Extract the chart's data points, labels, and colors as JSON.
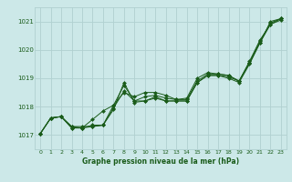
{
  "title": "Graphe pression niveau de la mer (hPa)",
  "bg_color": "#cce8e8",
  "grid_color": "#b0d0d0",
  "line_color": "#1a5c1a",
  "marker_color": "#1a5c1a",
  "xlim": [
    -0.5,
    23.5
  ],
  "ylim": [
    1016.5,
    1021.5
  ],
  "yticks": [
    1017,
    1018,
    1019,
    1020,
    1021
  ],
  "xticks": [
    0,
    1,
    2,
    3,
    4,
    5,
    6,
    7,
    8,
    9,
    10,
    11,
    12,
    13,
    14,
    15,
    16,
    17,
    18,
    19,
    20,
    21,
    22,
    23
  ],
  "series": [
    [
      1017.05,
      1017.6,
      1017.65,
      1017.25,
      1017.25,
      1017.35,
      1017.35,
      1017.9,
      1018.85,
      1018.15,
      1018.2,
      1018.35,
      1018.2,
      1018.2,
      1018.2,
      1018.85,
      1019.1,
      1019.1,
      1019.05,
      1018.9,
      1019.55,
      1020.3,
      1020.95,
      1021.1
    ],
    [
      1017.05,
      1017.6,
      1017.65,
      1017.25,
      1017.25,
      1017.55,
      1017.85,
      1018.05,
      1018.5,
      1018.35,
      1018.5,
      1018.5,
      1018.4,
      1018.25,
      1018.3,
      1019.0,
      1019.2,
      1019.15,
      1019.1,
      1018.9,
      1019.6,
      1020.35,
      1020.9,
      1021.1
    ],
    [
      1017.05,
      1017.6,
      1017.65,
      1017.3,
      1017.25,
      1017.3,
      1017.35,
      1018.05,
      1018.75,
      1018.2,
      1018.35,
      1018.4,
      1018.3,
      1018.25,
      1018.25,
      1018.9,
      1019.15,
      1019.15,
      1019.1,
      1018.9,
      1019.55,
      1020.25,
      1020.9,
      1021.05
    ],
    [
      1017.05,
      1017.6,
      1017.65,
      1017.3,
      1017.3,
      1017.3,
      1017.35,
      1017.95,
      1018.55,
      1018.2,
      1018.2,
      1018.3,
      1018.2,
      1018.2,
      1018.2,
      1018.85,
      1019.1,
      1019.1,
      1019.0,
      1018.85,
      1019.5,
      1020.25,
      1021.0,
      1021.1
    ]
  ]
}
